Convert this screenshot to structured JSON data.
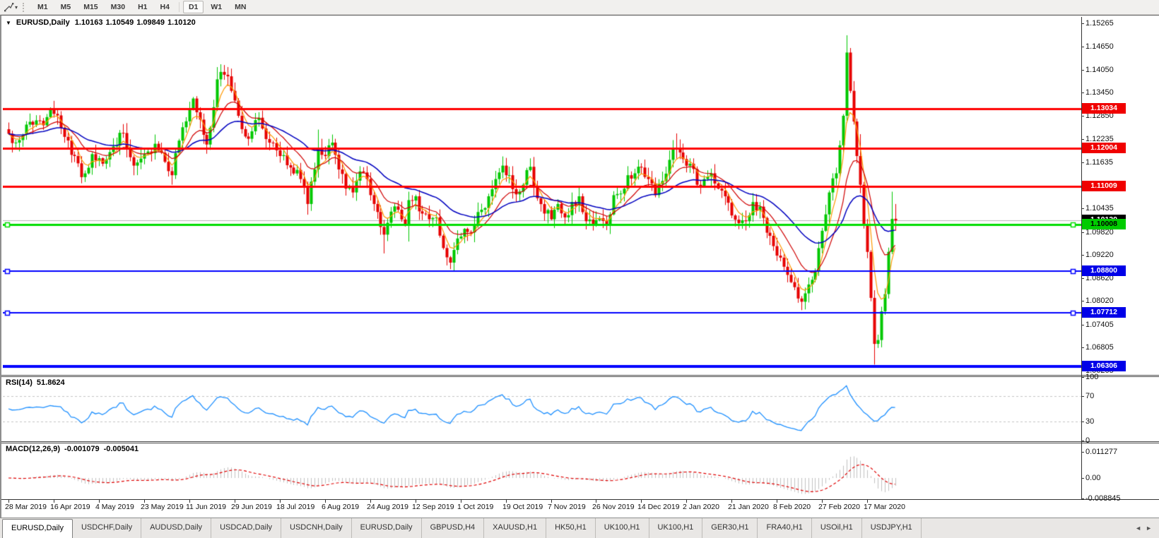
{
  "toolbar": {
    "timeframes": [
      "M1",
      "M5",
      "M15",
      "M30",
      "H1",
      "H4",
      "D1",
      "W1",
      "MN"
    ],
    "active_timeframe": "D1"
  },
  "icons": {
    "collapse": "▼",
    "toolbar_dropdown": "▾",
    "tab_scroll_left": "◄",
    "tab_scroll_right": "►"
  },
  "chart_header": {
    "symbol": "EURUSD,Daily",
    "open": "1.10163",
    "high": "1.10549",
    "low": "1.09849",
    "close": "1.10120"
  },
  "chart_data": {
    "type": "candlestick",
    "symbol": "EURUSD",
    "timeframe": "Daily",
    "x_labels": [
      "28 Mar 2019",
      "16 Apr 2019",
      "4 May 2019",
      "23 May 2019",
      "11 Jun 2019",
      "29 Jun 2019",
      "18 Jul 2019",
      "6 Aug 2019",
      "24 Aug 2019",
      "12 Sep 2019",
      "1 Oct 2019",
      "19 Oct 2019",
      "7 Nov 2019",
      "26 Nov 2019",
      "14 Dec 2019",
      "2 Jan 2020",
      "21 Jan 2020",
      "8 Feb 2020",
      "27 Feb 2020",
      "17 Mar 2020"
    ],
    "price_axis": {
      "ticks": [
        "1.15265",
        "1.14650",
        "1.14050",
        "1.13450",
        "1.12850",
        "1.12235",
        "1.11635",
        "1.10435",
        "1.09820",
        "1.09220",
        "1.08620",
        "1.08020",
        "1.07405",
        "1.06805",
        "1.06205"
      ],
      "badges": [
        {
          "label": "1.13034",
          "price": 1.13034,
          "bg": "#f00000",
          "fg": "#ffffff",
          "z": 1
        },
        {
          "label": "1.12004",
          "price": 1.12004,
          "bg": "#f00000",
          "fg": "#ffffff",
          "z": 1
        },
        {
          "label": "1.11009",
          "price": 1.11009,
          "bg": "#f00000",
          "fg": "#ffffff",
          "z": 1
        },
        {
          "label": "1.10120",
          "price": 1.1012,
          "bg": "#000000",
          "fg": "#ffffff",
          "z": 1
        },
        {
          "label": "1.10008",
          "price": 1.10008,
          "bg": "#00cc00",
          "fg": "#000000",
          "z": 2
        },
        {
          "label": "1.08800",
          "price": 1.088,
          "bg": "#0000e8",
          "fg": "#ffffff",
          "z": 1
        },
        {
          "label": "1.07712",
          "price": 1.07712,
          "bg": "#0000e8",
          "fg": "#ffffff",
          "z": 1
        },
        {
          "label": "1.06306",
          "price": 1.06306,
          "bg": "#0000e8",
          "fg": "#ffffff",
          "z": 2
        }
      ]
    },
    "hlines": [
      {
        "price": 1.13034,
        "color": "#ff0000",
        "w": 3,
        "handles": false
      },
      {
        "price": 1.12004,
        "color": "#ff0000",
        "w": 3,
        "handles": false
      },
      {
        "price": 1.11009,
        "color": "#ff0000",
        "w": 3,
        "handles": false
      },
      {
        "price": 1.10008,
        "color": "#00dd00",
        "w": 3,
        "handles": true
      },
      {
        "price": 1.088,
        "color": "#0000ff",
        "w": 2,
        "handles": true
      },
      {
        "price": 1.07712,
        "color": "#0000ff",
        "w": 2,
        "handles": true
      },
      {
        "price": 1.06306,
        "color": "#0000ff",
        "w": 4,
        "handles": false
      }
    ],
    "current_price_line": {
      "price": 1.1012,
      "color": "#b6b6b6"
    },
    "candles": {
      "count": 256,
      "bull_color": "#00c800",
      "bear_color": "#e60000",
      "last": {
        "o": 1.10163,
        "h": 1.10549,
        "l": 1.09849,
        "c": 1.1012
      },
      "anchors": [
        [
          0,
          1.1238
        ],
        [
          2,
          1.1215
        ],
        [
          5,
          1.1262
        ],
        [
          9,
          1.1272
        ],
        [
          13,
          1.129,
          1.1324,
          null
        ],
        [
          16,
          1.123
        ],
        [
          19,
          1.118
        ],
        [
          21,
          1.1125,
          null,
          1.1111
        ],
        [
          24,
          1.1185
        ],
        [
          27,
          1.116
        ],
        [
          30,
          1.1205
        ],
        [
          33,
          1.124
        ],
        [
          36,
          1.1155
        ],
        [
          39,
          1.1185
        ],
        [
          42,
          1.1212
        ],
        [
          45,
          1.1165
        ],
        [
          47,
          1.113,
          null,
          1.1107
        ],
        [
          50,
          1.1255
        ],
        [
          53,
          1.133
        ],
        [
          55,
          1.1275
        ],
        [
          57,
          1.121
        ],
        [
          60,
          1.138,
          1.1412,
          null
        ],
        [
          62,
          1.1392
        ],
        [
          64,
          1.135
        ],
        [
          66,
          1.1285
        ],
        [
          69,
          1.1225
        ],
        [
          72,
          1.128
        ],
        [
          75,
          1.1215
        ],
        [
          78,
          1.118
        ],
        [
          81,
          1.115
        ],
        [
          84,
          1.112
        ],
        [
          86,
          1.1055,
          null,
          1.1027
        ],
        [
          88,
          1.1145
        ],
        [
          89,
          1.12,
          1.1249,
          null
        ],
        [
          91,
          1.118
        ],
        [
          93,
          1.1215
        ],
        [
          95,
          1.1145
        ],
        [
          97,
          1.1095
        ],
        [
          99,
          1.1085
        ],
        [
          101,
          1.114
        ],
        [
          103,
          1.112
        ],
        [
          105,
          1.1055
        ],
        [
          107,
          1.0995
        ],
        [
          108,
          1.0975,
          null,
          1.0926
        ],
        [
          110,
          1.1035
        ],
        [
          112,
          1.104
        ],
        [
          114,
          1.1
        ],
        [
          115,
          1.1065,
          1.1087,
          1.0957
        ],
        [
          117,
          1.1075
        ],
        [
          119,
          1.103
        ],
        [
          121,
          1.1015
        ],
        [
          123,
          1.102
        ],
        [
          125,
          1.094
        ],
        [
          127,
          1.0902,
          null,
          1.0885
        ],
        [
          128,
          1.0935,
          null,
          1.0879
        ],
        [
          130,
          1.097
        ],
        [
          132,
          1.0982
        ],
        [
          134,
          1.1
        ],
        [
          136,
          1.104
        ],
        [
          138,
          1.1075
        ],
        [
          140,
          1.112
        ],
        [
          142,
          1.1155,
          1.1179,
          null
        ],
        [
          144,
          1.113
        ],
        [
          146,
          1.108
        ],
        [
          148,
          1.1105
        ],
        [
          150,
          1.1152
        ],
        [
          152,
          1.107
        ],
        [
          154,
          1.103
        ],
        [
          156,
          1.1015
        ],
        [
          158,
          1.1055
        ],
        [
          160,
          1.102
        ],
        [
          162,
          1.106
        ],
        [
          164,
          1.1075
        ],
        [
          166,
          1.101
        ],
        [
          168,
          1.1,
          null,
          1.0989
        ],
        [
          170,
          1.1018
        ],
        [
          172,
          1.1
        ],
        [
          174,
          1.1078
        ],
        [
          176,
          1.1082
        ],
        [
          178,
          1.113
        ],
        [
          180,
          1.1135
        ],
        [
          182,
          1.115
        ],
        [
          184,
          1.112
        ],
        [
          186,
          1.1078
        ],
        [
          188,
          1.1115
        ],
        [
          190,
          1.117
        ],
        [
          192,
          1.1199,
          1.1239,
          null
        ],
        [
          194,
          1.1172
        ],
        [
          196,
          1.116
        ],
        [
          198,
          1.1105
        ],
        [
          200,
          1.112
        ],
        [
          202,
          1.1135
        ],
        [
          204,
          1.1095
        ],
        [
          206,
          1.1075
        ],
        [
          208,
          1.1025
        ],
        [
          210,
          1.1005
        ],
        [
          212,
          1.101,
          null,
          1.0992
        ],
        [
          214,
          1.106
        ],
        [
          216,
          1.1048
        ],
        [
          218,
          1.098
        ],
        [
          220,
          1.0945
        ],
        [
          222,
          1.0915
        ],
        [
          224,
          1.087
        ],
        [
          226,
          1.0838
        ],
        [
          228,
          1.08,
          null,
          1.0778
        ],
        [
          230,
          1.0845
        ],
        [
          232,
          1.088
        ],
        [
          234,
          1.0985
        ],
        [
          236,
          1.1085
        ],
        [
          238,
          1.1135
        ],
        [
          240,
          1.1285
        ],
        [
          241,
          1.145,
          1.1495,
          null
        ],
        [
          242,
          1.135
        ],
        [
          243,
          1.127
        ],
        [
          244,
          1.118
        ],
        [
          245,
          1.1105,
          1.1237,
          null
        ],
        [
          246,
          1.1
        ],
        [
          247,
          1.093
        ],
        [
          248,
          1.081
        ],
        [
          249,
          1.069,
          null,
          1.0636
        ],
        [
          250,
          1.07
        ],
        [
          251,
          1.0775
        ],
        [
          252,
          1.082
        ],
        [
          253,
          1.093
        ],
        [
          254,
          1.1016,
          1.1087,
          null
        ],
        [
          255,
          1.1012
        ]
      ]
    },
    "moving_averages": [
      {
        "period": 5,
        "color": "#ff9900"
      },
      {
        "period": 13,
        "color": "#d00000"
      },
      {
        "period": 34,
        "color": "#0000c0"
      }
    ],
    "rsi": {
      "name": "RSI(14)",
      "value": "51.8624",
      "color": "#1e90ff",
      "levels": [
        70,
        30
      ],
      "ticks": [
        {
          "label": "100",
          "v": 100
        },
        {
          "label": "70",
          "v": 70
        },
        {
          "label": "30",
          "v": 30
        },
        {
          "label": "0",
          "v": 0
        }
      ]
    },
    "macd": {
      "name": "MACD(12,26,9)",
      "main_value": "-0.001079",
      "signal_value": "-0.005041",
      "hist_color": "#c2c2c2",
      "signal_color": "#e00000",
      "ticks": [
        {
          "label": "0.011277",
          "v": 0.011277
        },
        {
          "label": "0.00",
          "v": 0
        },
        {
          "label": "-0.008845",
          "v": -0.008845
        }
      ]
    }
  },
  "tabs": {
    "items": [
      {
        "label": "EURUSD,Daily",
        "active": true
      },
      {
        "label": "USDCHF,Daily",
        "active": false
      },
      {
        "label": "AUDUSD,Daily",
        "active": false
      },
      {
        "label": "USDCAD,Daily",
        "active": false
      },
      {
        "label": "USDCNH,Daily",
        "active": false
      },
      {
        "label": "EURUSD,Daily",
        "active": false
      },
      {
        "label": "GBPUSD,H4",
        "active": false
      },
      {
        "label": "XAUUSD,H1",
        "active": false
      },
      {
        "label": "HK50,H1",
        "active": false
      },
      {
        "label": "UK100,H1",
        "active": false
      },
      {
        "label": "UK100,H1",
        "active": false
      },
      {
        "label": "GER30,H1",
        "active": false
      },
      {
        "label": "FRA40,H1",
        "active": false
      },
      {
        "label": "USOil,H1",
        "active": false
      },
      {
        "label": "USDJPY,H1",
        "active": false
      }
    ]
  }
}
